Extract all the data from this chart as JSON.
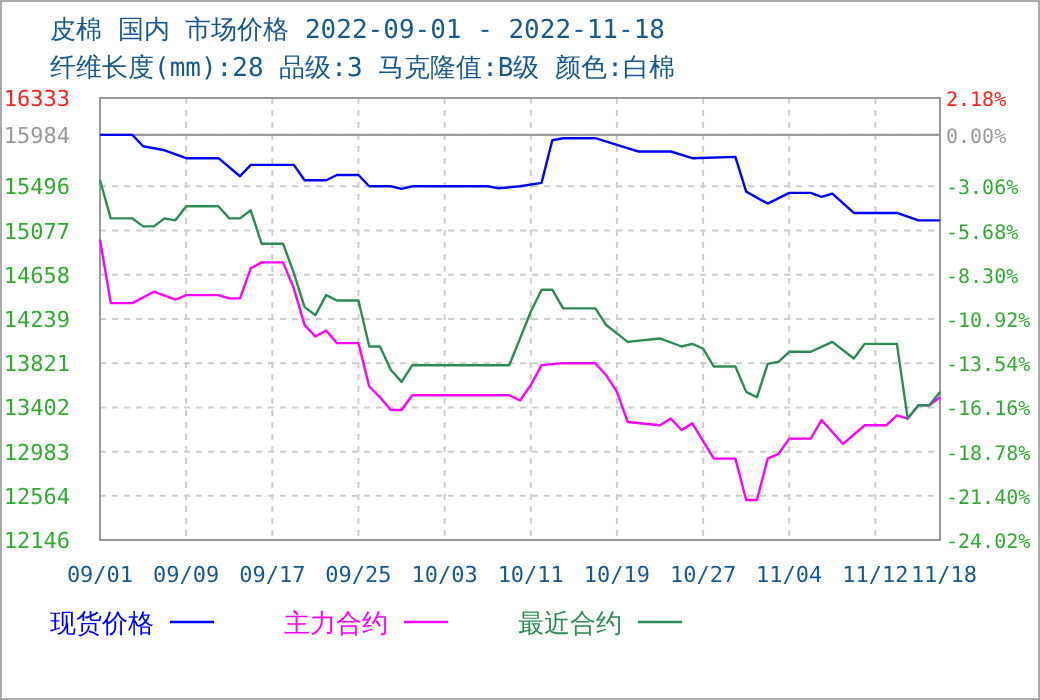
{
  "chart_data": {
    "type": "line",
    "title": "皮棉 国内 市场价格 2022-09-01 - 2022-11-18",
    "subtitle": "纤维长度(mm):28 品级:3 马克隆值:B级 颜色:白棉",
    "xlim": [
      "2022-09-01",
      "2022-11-18"
    ],
    "xticks": [
      {
        "value": "2022-09-01",
        "label": "09/01"
      },
      {
        "value": "2022-09-09",
        "label": "09/09"
      },
      {
        "value": "2022-09-17",
        "label": "09/17"
      },
      {
        "value": "2022-09-25",
        "label": "09/25"
      },
      {
        "value": "2022-10-03",
        "label": "10/03"
      },
      {
        "value": "2022-10-11",
        "label": "10/11"
      },
      {
        "value": "2022-10-19",
        "label": "10/19"
      },
      {
        "value": "2022-10-27",
        "label": "10/27"
      },
      {
        "value": "2022-11-04",
        "label": "11/04"
      },
      {
        "value": "2022-11-12",
        "label": "11/12"
      },
      {
        "value": "2022-11-18",
        "label": "11/18"
      }
    ],
    "ylim": [
      12146,
      16333
    ],
    "yticks": [
      12146,
      12564,
      12983,
      13402,
      13821,
      14239,
      14658,
      15077,
      15496,
      15984,
      16333
    ],
    "y2lim": [
      -24.02,
      2.18
    ],
    "y2ticks": [
      {
        "value": -24.02,
        "label": "-24.02%"
      },
      {
        "value": -21.4,
        "label": "-21.40%"
      },
      {
        "value": -18.78,
        "label": "-18.78%"
      },
      {
        "value": -16.16,
        "label": "-16.16%"
      },
      {
        "value": -13.54,
        "label": "-13.54%"
      },
      {
        "value": -10.92,
        "label": "-10.92%"
      },
      {
        "value": -8.3,
        "label": "-8.30%"
      },
      {
        "value": -5.68,
        "label": "-5.68%"
      },
      {
        "value": -3.06,
        "label": "-3.06%"
      },
      {
        "value": 0,
        "label": "0.00%"
      },
      {
        "value": 2.18,
        "label": "2.18%"
      }
    ],
    "grid": true,
    "legend": "bottom",
    "line_style": "solid",
    "ref_lines": [
      {
        "axis": "y",
        "value": 15984,
        "color": "#999999"
      }
    ],
    "series": [
      {
        "name": "现货价格",
        "color": "#0000ff",
        "x": [
          "2022-09-01",
          "2022-09-04",
          "2022-09-05",
          "2022-09-07",
          "2022-09-09",
          "2022-09-12",
          "2022-09-14",
          "2022-09-15",
          "2022-09-19",
          "2022-09-20",
          "2022-09-22",
          "2022-09-23",
          "2022-09-25",
          "2022-09-26",
          "2022-09-28",
          "2022-09-29",
          "2022-09-30",
          "2022-10-07",
          "2022-10-08",
          "2022-10-10",
          "2022-10-12",
          "2022-10-13",
          "2022-10-14",
          "2022-10-17",
          "2022-10-19",
          "2022-10-21",
          "2022-10-24",
          "2022-10-26",
          "2022-10-30",
          "2022-10-31",
          "2022-11-02",
          "2022-11-04",
          "2022-11-06",
          "2022-11-07",
          "2022-11-08",
          "2022-11-10",
          "2022-11-14",
          "2022-11-16",
          "2022-11-18"
        ],
        "values": [
          15984,
          15984,
          15876,
          15838,
          15763,
          15763,
          15592,
          15699,
          15699,
          15554,
          15554,
          15604,
          15604,
          15497,
          15497,
          15472,
          15497,
          15497,
          15478,
          15497,
          15529,
          15933,
          15952,
          15952,
          15889,
          15826,
          15826,
          15763,
          15775,
          15446,
          15333,
          15434,
          15434,
          15396,
          15427,
          15244,
          15244,
          15174,
          15174
        ]
      },
      {
        "name": "主力合约",
        "color": "#ff00ff",
        "x": [
          "2022-09-01",
          "2022-09-02",
          "2022-09-04",
          "2022-09-06",
          "2022-09-08",
          "2022-09-09",
          "2022-09-12",
          "2022-09-13",
          "2022-09-14",
          "2022-09-15",
          "2022-09-16",
          "2022-09-18",
          "2022-09-19",
          "2022-09-20",
          "2022-09-21",
          "2022-09-22",
          "2022-09-23",
          "2022-09-25",
          "2022-09-26",
          "2022-09-27",
          "2022-09-28",
          "2022-09-29",
          "2022-09-30",
          "2022-10-09",
          "2022-10-10",
          "2022-10-11",
          "2022-10-12",
          "2022-10-14",
          "2022-10-17",
          "2022-10-18",
          "2022-10-19",
          "2022-10-20",
          "2022-10-23",
          "2022-10-24",
          "2022-10-25",
          "2022-10-26",
          "2022-10-28",
          "2022-10-30",
          "2022-10-31",
          "2022-11-01",
          "2022-11-02",
          "2022-11-03",
          "2022-11-04",
          "2022-11-06",
          "2022-11-07",
          "2022-11-09",
          "2022-11-11",
          "2022-11-13",
          "2022-11-14",
          "2022-11-15",
          "2022-11-16",
          "2022-11-17",
          "2022-11-18"
        ],
        "values": [
          14991,
          14390,
          14390,
          14498,
          14422,
          14466,
          14466,
          14435,
          14435,
          14720,
          14776,
          14776,
          14530,
          14182,
          14074,
          14131,
          14011,
          14011,
          13600,
          13498,
          13378,
          13378,
          13517,
          13517,
          13467,
          13612,
          13802,
          13821,
          13821,
          13707,
          13549,
          13264,
          13233,
          13296,
          13188,
          13251,
          12917,
          12917,
          12525,
          12525,
          12917,
          12961,
          13106,
          13106,
          13283,
          13056,
          13233,
          13233,
          13327,
          13296,
          13422,
          13422,
          13498
        ]
      },
      {
        "name": "最近合约",
        "color": "#2e8b57",
        "x": [
          "2022-09-01",
          "2022-09-02",
          "2022-09-04",
          "2022-09-05",
          "2022-09-06",
          "2022-09-07",
          "2022-09-08",
          "2022-09-09",
          "2022-09-12",
          "2022-09-13",
          "2022-09-14",
          "2022-09-15",
          "2022-09-16",
          "2022-09-18",
          "2022-09-19",
          "2022-09-20",
          "2022-09-21",
          "2022-09-22",
          "2022-09-23",
          "2022-09-25",
          "2022-09-26",
          "2022-09-27",
          "2022-09-28",
          "2022-09-29",
          "2022-09-30",
          "2022-10-09",
          "2022-10-10",
          "2022-10-11",
          "2022-10-12",
          "2022-10-13",
          "2022-10-14",
          "2022-10-17",
          "2022-10-18",
          "2022-10-20",
          "2022-10-23",
          "2022-10-25",
          "2022-10-26",
          "2022-10-27",
          "2022-10-28",
          "2022-10-30",
          "2022-10-31",
          "2022-11-01",
          "2022-11-02",
          "2022-11-03",
          "2022-11-04",
          "2022-11-06",
          "2022-11-08",
          "2022-11-10",
          "2022-11-11",
          "2022-11-14",
          "2022-11-15",
          "2022-11-16",
          "2022-11-17",
          "2022-11-18"
        ],
        "values": [
          15554,
          15193,
          15193,
          15117,
          15117,
          15193,
          15174,
          15307,
          15307,
          15193,
          15193,
          15269,
          14953,
          14953,
          14675,
          14352,
          14276,
          14466,
          14415,
          14415,
          13979,
          13979,
          13758,
          13644,
          13802,
          13802,
          14054,
          14308,
          14517,
          14517,
          14340,
          14340,
          14182,
          14023,
          14055,
          13979,
          14004,
          13960,
          13789,
          13789,
          13549,
          13498,
          13815,
          13834,
          13929,
          13929,
          14023,
          13865,
          14004,
          14004,
          13296,
          13422,
          13422,
          13549
        ]
      }
    ]
  }
}
